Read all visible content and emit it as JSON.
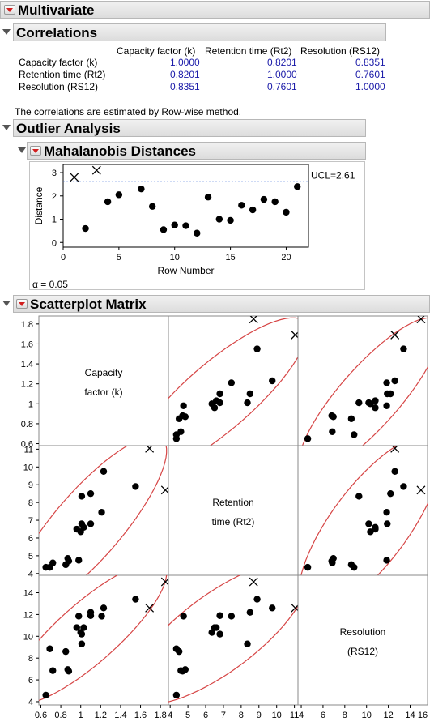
{
  "sections": {
    "multivariate": "Multivariate",
    "correlations": "Correlations",
    "outlier_analysis": "Outlier Analysis",
    "mahalanobis": "Mahalanobis Distances",
    "scatterplot_matrix": "Scatterplot Matrix"
  },
  "correlations": {
    "columns": [
      "Capacity factor (k)",
      "Retention time (Rt2)",
      "Resolution (RS12)"
    ],
    "rows": [
      {
        "label": "Capacity factor (k)",
        "values": [
          "1.0000",
          "0.8201",
          "0.8351"
        ]
      },
      {
        "label": "Retention time (Rt2)",
        "values": [
          "0.8201",
          "1.0000",
          "0.7601"
        ]
      },
      {
        "label": "Resolution (RS12)",
        "values": [
          "0.8351",
          "0.7601",
          "1.0000"
        ]
      }
    ],
    "note": "The correlations are estimated by Row-wise method."
  },
  "alpha_label": "α = 0.05",
  "colors": {
    "accent_red": "#d21f1f",
    "ucl_line": "#3a6fd8",
    "ellipse": "#d64545",
    "values": "#1a1aa8"
  },
  "chart_data": [
    {
      "type": "scatter",
      "title": "",
      "xlabel": "Row Number",
      "ylabel": "Distance",
      "xlim": [
        0,
        22
      ],
      "ylim": [
        -0.2,
        3.35
      ],
      "xticks": [
        "0",
        "5",
        "10",
        "15",
        "20"
      ],
      "yticks": [
        "0",
        "1",
        "2",
        "3"
      ],
      "ucl": 2.61,
      "ucl_label": "UCL=2.61",
      "points": [
        {
          "x": 1,
          "y": 2.8,
          "marker": "x"
        },
        {
          "x": 2,
          "y": 0.6
        },
        {
          "x": 3,
          "y": 3.1,
          "marker": "x"
        },
        {
          "x": 4,
          "y": 1.75
        },
        {
          "x": 5,
          "y": 2.05
        },
        {
          "x": 7,
          "y": 2.3
        },
        {
          "x": 8,
          "y": 1.55
        },
        {
          "x": 9,
          "y": 0.55
        },
        {
          "x": 10,
          "y": 0.75
        },
        {
          "x": 11,
          "y": 0.72
        },
        {
          "x": 12,
          "y": 0.4
        },
        {
          "x": 13,
          "y": 1.95
        },
        {
          "x": 14,
          "y": 1.0
        },
        {
          "x": 15,
          "y": 0.95
        },
        {
          "x": 16,
          "y": 1.6
        },
        {
          "x": 17,
          "y": 1.4
        },
        {
          "x": 18,
          "y": 1.85
        },
        {
          "x": 19,
          "y": 1.75
        },
        {
          "x": 20,
          "y": 1.3
        },
        {
          "x": 21,
          "y": 2.4
        }
      ]
    },
    {
      "type": "scatter",
      "title": "Scatterplot Matrix",
      "variables": [
        "Capacity factor (k)",
        "Retention time (Rt2)",
        "Resolution (RS12)"
      ],
      "variable_labels": [
        [
          "Capacity",
          "factor (k)"
        ],
        [
          "Retention",
          "time (Rt2)"
        ],
        [
          "Resolution",
          "(RS12)"
        ]
      ],
      "ranges": [
        [
          0.58,
          1.88
        ],
        [
          3.9,
          11.2
        ],
        [
          3.7,
          15.6
        ]
      ],
      "ticks": [
        {
          "values": [
            0.6,
            0.8,
            1,
            1.2,
            1.4,
            1.6,
            1.8
          ],
          "labels": [
            "0.6",
            "0.8",
            "1",
            "1.2",
            "1.4",
            "1.6",
            "1.8"
          ]
        },
        {
          "values": [
            4,
            5,
            6,
            7,
            8,
            9,
            10,
            11
          ],
          "labels": [
            "4",
            "5",
            "6",
            "7",
            "8",
            "9",
            "10",
            "11"
          ]
        },
        {
          "values": [
            4,
            6,
            8,
            10,
            12,
            14
          ],
          "labels": [
            "4",
            "6",
            "8",
            "10",
            "12",
            "14"
          ]
        }
      ],
      "bottom_axis_labels": [
        "0.6",
        "0.8",
        "1",
        "1.2",
        "1.4",
        "1.6",
        "1.8",
        "4",
        "5",
        "6",
        "7",
        "8",
        "9",
        "10",
        "11",
        "4",
        "6",
        "8",
        "10",
        "12",
        "14",
        "16"
      ],
      "points": [
        {
          "k": 0.65,
          "rt2": 4.35,
          "rs12": 4.6
        },
        {
          "k": 0.69,
          "rt2": 4.35,
          "rs12": 8.85
        },
        {
          "k": 0.72,
          "rt2": 4.6,
          "rs12": 6.85
        },
        {
          "k": 0.85,
          "rt2": 4.5,
          "rs12": 8.6
        },
        {
          "k": 0.87,
          "rt2": 4.85,
          "rs12": 6.95
        },
        {
          "k": 0.88,
          "rt2": 4.7,
          "rs12": 6.8
        },
        {
          "k": 0.98,
          "rt2": 4.75,
          "rs12": 11.85
        },
        {
          "k": 1.0,
          "rt2": 6.35,
          "rs12": 10.35
        },
        {
          "k": 0.96,
          "rt2": 6.5,
          "rs12": 10.8
        },
        {
          "k": 1.01,
          "rt2": 6.8,
          "rs12": 10.2
        },
        {
          "k": 1.03,
          "rt2": 6.6,
          "rs12": 10.8
        },
        {
          "k": 1.01,
          "rt2": 8.35,
          "rs12": 9.3
        },
        {
          "k": 1.1,
          "rt2": 6.8,
          "rs12": 11.9
        },
        {
          "k": 1.1,
          "rt2": 8.5,
          "rs12": 12.2
        },
        {
          "k": 1.21,
          "rt2": 7.45,
          "rs12": 11.85
        },
        {
          "k": 1.23,
          "rt2": 9.75,
          "rs12": 12.6
        },
        {
          "k": 1.55,
          "rt2": 8.9,
          "rs12": 13.4
        },
        {
          "k": 1.69,
          "rt2": 11.05,
          "rs12": 12.6,
          "marker": "x"
        },
        {
          "k": 1.85,
          "rt2": 8.7,
          "rs12": 15.0,
          "marker": "x"
        }
      ]
    }
  ]
}
